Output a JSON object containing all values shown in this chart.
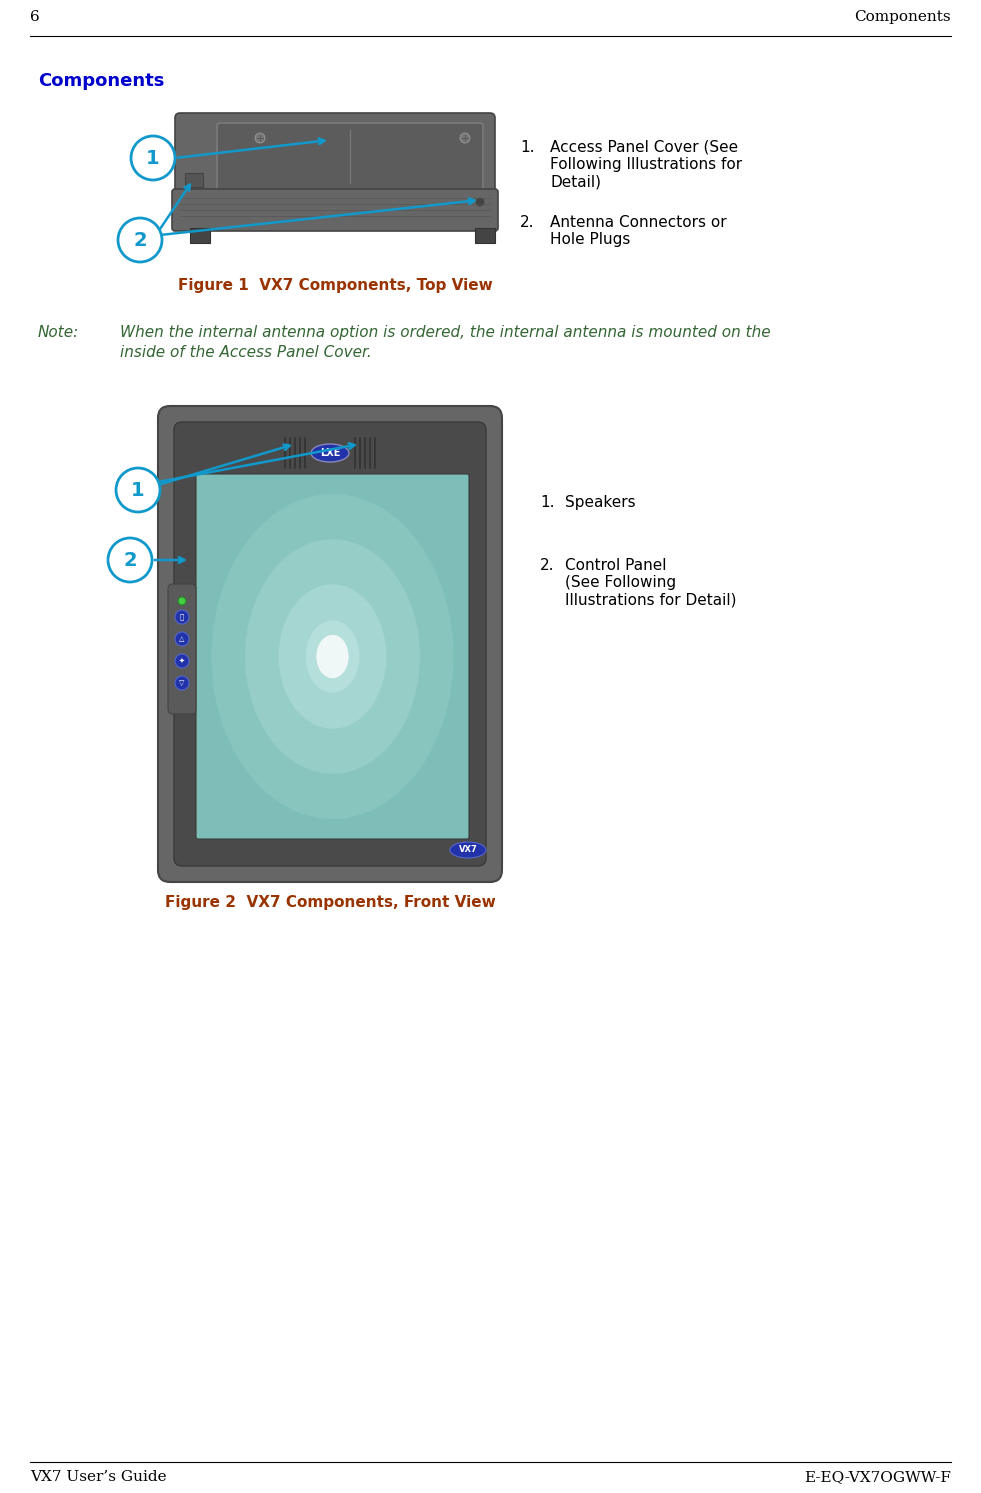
{
  "page_number": "6",
  "page_header_right": "Components",
  "page_footer_left": "VX7 User’s Guide",
  "page_footer_right": "E-EQ-VX7OGWW-F",
  "section_title": "Components",
  "section_title_color": "#0000CC",
  "figure1_caption": "Figure 1  VX7 Components, Top View",
  "figure1_caption_color": "#993300",
  "figure2_caption": "Figure 2  VX7 Components, Front View",
  "figure2_caption_color": "#993300",
  "callout_color": "#1199CC",
  "item1_fig1_num": "1.",
  "item1_fig1_text": "Access Panel Cover (See\nFollowing Illustrations for\nDetail)",
  "item2_fig1_num": "2.",
  "item2_fig1_text": "Antenna Connectors or\nHole Plugs",
  "item1_fig2_num": "1.",
  "item1_fig2_text": "Speakers",
  "item2_fig2_num": "2.",
  "item2_fig2_text": "Control Panel\n(See Following\nIllustrations for Detail)",
  "note_label": "Note:",
  "note_line1": "When the internal antenna option is ordered, the internal antenna is mounted on the",
  "note_line2": "inside of the Access Panel Cover.",
  "note_color": "#336633",
  "background_color": "#FFFFFF",
  "text_color": "#000000",
  "device_body": "#666666",
  "device_dark": "#555555",
  "device_darker": "#444444",
  "device_inner": "#5A5A5A",
  "screen_teal": "#7DBFB8",
  "screen_glow": "#C5E8E4",
  "screen_center": "#E8F5F4",
  "lxe_badge_color": "#2233AA",
  "lxe_badge_text": "#FFFFFF",
  "btn_color": "#2233AA",
  "vx7_badge": "#2233AA"
}
